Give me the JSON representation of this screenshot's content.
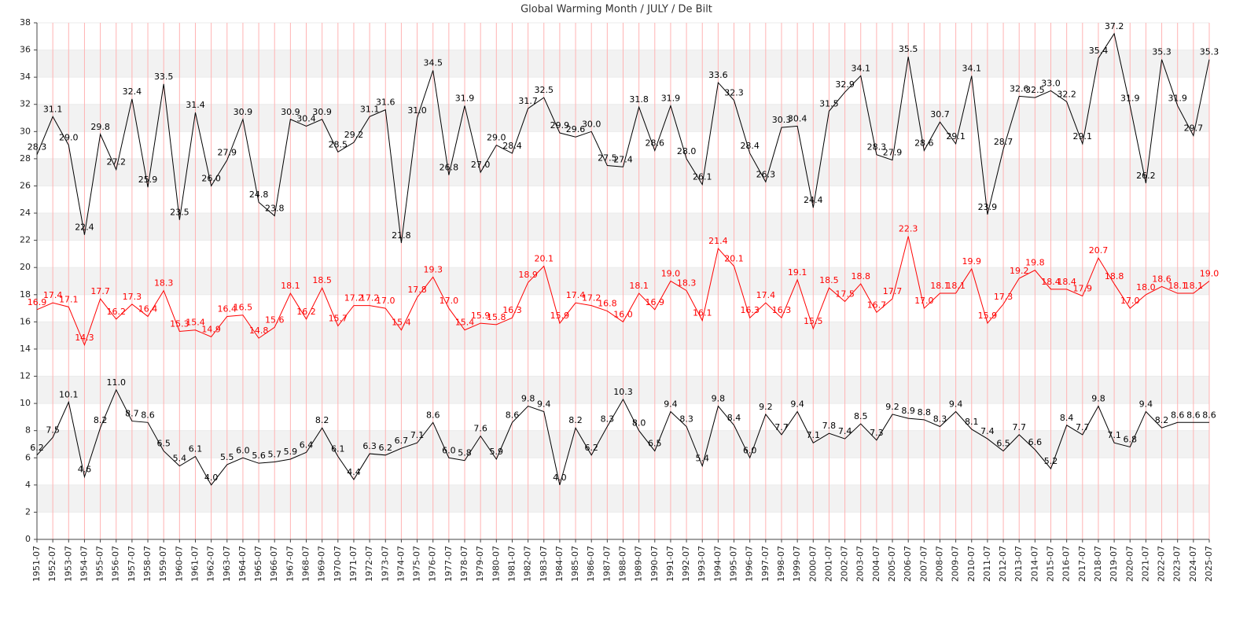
{
  "chart_data": {
    "type": "line",
    "title": "Global Warming Month / JULY / De Bilt",
    "categories": [
      "1951-07",
      "1952-07",
      "1953-07",
      "1954-07",
      "1955-07",
      "1956-07",
      "1957-07",
      "1958-07",
      "1959-07",
      "1960-07",
      "1961-07",
      "1962-07",
      "1963-07",
      "1964-07",
      "1965-07",
      "1966-07",
      "1967-07",
      "1968-07",
      "1969-07",
      "1970-07",
      "1971-07",
      "1972-07",
      "1973-07",
      "1974-07",
      "1975-07",
      "1976-07",
      "1977-07",
      "1978-07",
      "1979-07",
      "1980-07",
      "1981-07",
      "1982-07",
      "1983-07",
      "1984-07",
      "1985-07",
      "1986-07",
      "1987-07",
      "1988-07",
      "1989-07",
      "1990-07",
      "1991-07",
      "1992-07",
      "1993-07",
      "1994-07",
      "1995-07",
      "1996-07",
      "1997-07",
      "1998-07",
      "1999-07",
      "2000-07",
      "2001-07",
      "2002-07",
      "2003-07",
      "2004-07",
      "2005-07",
      "2006-07",
      "2007-07",
      "2008-07",
      "2009-07",
      "2010-07",
      "2011-07",
      "2012-07",
      "2013-07",
      "2014-07",
      "2015-07",
      "2016-07",
      "2017-07",
      "2018-07",
      "2019-07",
      "2020-07",
      "2021-07",
      "2022-07",
      "2023-07",
      "2024-07",
      "2025-07"
    ],
    "series": [
      {
        "color": "#000000",
        "values": [
          28.3,
          31.1,
          29.0,
          22.4,
          29.8,
          27.2,
          32.4,
          25.9,
          33.5,
          23.5,
          31.4,
          26.0,
          27.9,
          30.9,
          24.8,
          23.8,
          30.9,
          30.4,
          30.9,
          28.5,
          29.2,
          31.1,
          31.6,
          21.8,
          31.0,
          34.5,
          26.8,
          31.9,
          27.0,
          29.0,
          28.4,
          31.7,
          32.5,
          29.9,
          29.6,
          30.0,
          27.5,
          27.4,
          31.8,
          28.6,
          31.9,
          28.0,
          26.1,
          33.6,
          32.3,
          28.4,
          26.3,
          30.3,
          30.4,
          24.4,
          31.5,
          32.9,
          34.1,
          28.3,
          27.9,
          35.5,
          28.6,
          30.7,
          29.1,
          34.1,
          23.9,
          28.7,
          32.6,
          32.5,
          33.0,
          32.2,
          29.1,
          35.4,
          37.2,
          31.9,
          26.2,
          35.3,
          31.9,
          29.7,
          35.3
        ],
        "value_labels": [
          "28.3",
          "31.1",
          "29.0",
          "22.4",
          "29.8",
          "27.2",
          "32.4",
          "25.9",
          "33.5",
          "23.5",
          "31.4",
          "26.0",
          "27.9",
          "30.9",
          "24.8",
          "23.8",
          "30.9",
          "30.4",
          "30.9",
          "28.5",
          "29.2",
          "31.1",
          "31.6",
          "21.8",
          "31.0",
          "34.5",
          "26.8",
          "31.9",
          "27.0",
          "29.0",
          "28.4",
          "31.7",
          "32.5",
          "29.9",
          "29.6",
          "30.0",
          "27.5",
          "27.4",
          "31.8",
          "28.6",
          "31.9",
          "28.0",
          "26.1",
          "33.6",
          "32.3",
          "28.4",
          "26.3",
          "30.3",
          "30.4",
          "24.4",
          "31.5",
          "32.9",
          "34.1",
          "28.3",
          "27.9",
          "35.5",
          "28.6",
          "30.7",
          "29.1",
          "34.1",
          "23.9",
          "28.7",
          "32.6",
          "32.5",
          "33.0",
          "32.2",
          "29.1",
          "35.4",
          "37.2",
          "31.9",
          "26.2",
          "35.3",
          "31.9",
          "29.7",
          "35.3"
        ]
      },
      {
        "color": "#ff0000",
        "values": [
          16.9,
          17.4,
          17.1,
          14.3,
          17.7,
          16.2,
          17.3,
          16.4,
          18.3,
          15.3,
          15.4,
          14.9,
          16.4,
          16.5,
          14.8,
          15.6,
          18.1,
          16.2,
          18.5,
          15.7,
          17.2,
          17.2,
          17.0,
          15.4,
          17.8,
          19.3,
          17.0,
          15.4,
          15.9,
          15.8,
          16.3,
          18.9,
          20.1,
          15.9,
          17.4,
          17.2,
          16.8,
          16.0,
          18.1,
          16.9,
          19.0,
          18.3,
          16.1,
          21.4,
          20.1,
          16.3,
          17.4,
          16.3,
          19.1,
          15.5,
          18.5,
          17.5,
          18.8,
          16.7,
          17.7,
          22.3,
          17.0,
          18.1,
          18.1,
          19.9,
          15.9,
          17.3,
          19.2,
          19.8,
          18.4,
          18.4,
          17.9,
          20.7,
          18.8,
          17.0,
          18.0,
          18.6,
          18.1,
          18.1,
          19.0
        ],
        "value_labels": [
          "16.9",
          "17.4",
          "17.1",
          "14.3",
          "17.7",
          "16.2",
          "17.3",
          "16.4",
          "18.3",
          "15.3",
          "15.4",
          "14.9",
          "16.4",
          "16.5",
          "14.8",
          "15.6",
          "18.1",
          "16.2",
          "18.5",
          "15.7",
          "17.2",
          "17.2",
          "17.0",
          "15.4",
          "17.8",
          "19.3",
          "17.0",
          "15.4",
          "15.9",
          "15.8",
          "16.3",
          "18.9",
          "20.1",
          "15.9",
          "17.4",
          "17.2",
          "16.8",
          "16.0",
          "18.1",
          "16.9",
          "19.0",
          "18.3",
          "16.1",
          "21.4",
          "20.1",
          "16.3",
          "17.4",
          "16.3",
          "19.1",
          "15.5",
          "18.5",
          "17.5",
          "18.8",
          "16.7",
          "17.7",
          "22.3",
          "17.0",
          "18.1",
          "18.1",
          "19.9",
          "15.9",
          "17.3",
          "19.2",
          "19.8",
          "18.4",
          "18.4",
          "17.9",
          "20.7",
          "18.8",
          "17.0",
          "18.0",
          "18.6",
          "18.1",
          "18.1",
          "19.0"
        ]
      },
      {
        "color": "#000000",
        "values": [
          6.2,
          7.5,
          10.1,
          4.6,
          8.2,
          11.0,
          8.7,
          8.6,
          6.5,
          5.4,
          6.1,
          4.0,
          5.5,
          6.0,
          5.6,
          5.7,
          5.9,
          6.4,
          8.2,
          6.1,
          4.4,
          6.3,
          6.2,
          6.7,
          7.1,
          8.6,
          6.0,
          5.8,
          7.6,
          5.9,
          8.6,
          9.8,
          9.4,
          4.0,
          8.2,
          6.2,
          8.3,
          10.3,
          8.0,
          6.5,
          9.4,
          8.3,
          5.4,
          9.8,
          8.4,
          6.0,
          9.2,
          7.7,
          9.4,
          7.1,
          7.8,
          7.4,
          8.5,
          7.3,
          9.2,
          8.9,
          8.8,
          8.3,
          9.4,
          8.1,
          7.4,
          6.5,
          7.7,
          6.6,
          5.2,
          8.4,
          7.7,
          9.8,
          7.1,
          6.8,
          9.4,
          8.2,
          8.6,
          8.6,
          8.6
        ],
        "value_labels": [
          "6.2",
          "7.5",
          "10.1",
          "4.6",
          "8.2",
          "11.0",
          "8.7",
          "8.6",
          "6.5",
          "5.4",
          "6.1",
          "4.0",
          "5.5",
          "6.0",
          "5.6",
          "5.7",
          "5.9",
          "6.4",
          "8.2",
          "6.1",
          "4.4",
          "6.3",
          "6.2",
          "6.7",
          "7.1",
          "8.6",
          "6.0",
          "5.8",
          "7.6",
          "5.9",
          "8.6",
          "9.8",
          "9.4",
          "4.0",
          "8.2",
          "6.2",
          "8.3",
          "10.3",
          "8.0",
          "6.5",
          "9.4",
          "8.3",
          "5.4",
          "9.8",
          "8.4",
          "6.0",
          "9.2",
          "7.7",
          "9.4",
          "7.1",
          "7.8",
          "7.4",
          "8.5",
          "7.3",
          "9.2",
          "8.9",
          "8.8",
          "8.3",
          "9.4",
          "8.1",
          "7.4",
          "6.5",
          "7.7",
          "6.6",
          "5.2",
          "8.4",
          "7.7",
          "9.8",
          "7.1",
          "6.8",
          "9.4",
          "8.2",
          "8.6",
          "8.6",
          "8.6"
        ]
      }
    ],
    "ylim": [
      0,
      38
    ],
    "yticks": [
      0,
      2,
      4,
      6,
      8,
      10,
      12,
      14,
      16,
      18,
      20,
      22,
      24,
      26,
      28,
      30,
      32,
      34,
      36,
      38
    ],
    "grid": true,
    "grid_color": "#ffb3b3"
  }
}
